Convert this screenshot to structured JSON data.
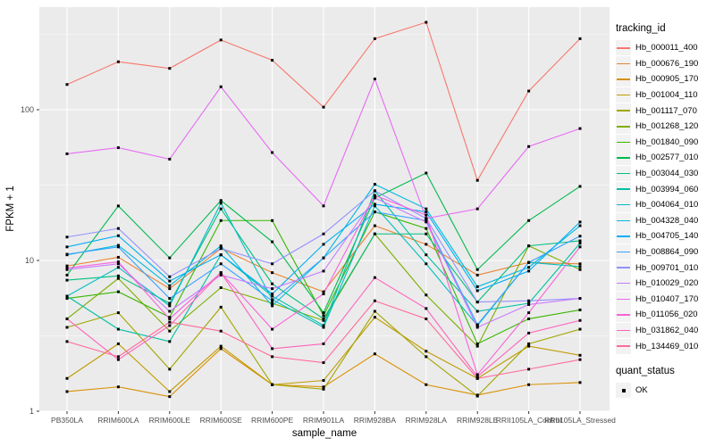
{
  "legend": {
    "tracking_title": "tracking_id",
    "quant_title": "quant_status",
    "quant_ok_label": "OK"
  },
  "chart_data": {
    "type": "line",
    "title": "",
    "xlabel": "sample_name",
    "ylabel": "FPKM + 1",
    "y_scale": "log10",
    "y_tick_values": [
      1,
      10,
      100
    ],
    "y_tick_labels": [
      "1",
      "10",
      "100"
    ],
    "ylim": [
      1,
      480
    ],
    "grid": true,
    "legend_position": "right",
    "panel_bg": "#EBEBEB",
    "grid_color": "#FFFFFF",
    "tick_color": "#333333",
    "tick_label_color": "#4D4D4D",
    "point_color": "#000000",
    "point_shape": "square",
    "categories": [
      "PB350LA",
      "RRIM600LA",
      "RRIM600LE",
      "RRIM600SE",
      "RRIM600PE",
      "RRIM901LA",
      "RRIM928BA",
      "RRIM928LA",
      "RRIM928LE",
      "RRII105LA_Control",
      "RRII105LA_Stressed"
    ],
    "series": [
      {
        "name": "Hb_000011_400",
        "color": "#F8766D",
        "values": [
          147,
          208,
          188,
          290,
          213,
          104,
          296,
          380,
          34,
          133,
          296
        ]
      },
      {
        "name": "Hb_000676_190",
        "color": "#EA8331",
        "values": [
          9.2,
          10.5,
          6.5,
          12,
          8.3,
          6.2,
          17,
          12.8,
          8,
          9.7,
          9.5
        ]
      },
      {
        "name": "Hb_000905_170",
        "color": "#D89000",
        "values": [
          1.35,
          1.45,
          1.25,
          2.6,
          1.5,
          1.45,
          2.4,
          1.5,
          1.28,
          1.5,
          1.55
        ]
      },
      {
        "name": "Hb_001004_110",
        "color": "#C09B00",
        "values": [
          1.65,
          2.8,
          1.35,
          2.7,
          1.5,
          1.6,
          4.2,
          2.5,
          1.65,
          2.7,
          2.35
        ]
      },
      {
        "name": "Hb_001117_070",
        "color": "#A3A500",
        "values": [
          3.6,
          4.5,
          1.9,
          4.9,
          1.5,
          1.4,
          4.6,
          2.3,
          1.26,
          2.8,
          3.5
        ]
      },
      {
        "name": "Hb_001268_120",
        "color": "#7CAE00",
        "values": [
          4.1,
          7.6,
          3.4,
          6.6,
          5.2,
          4,
          15,
          5.9,
          2.7,
          12.5,
          8.7
        ]
      },
      {
        "name": "Hb_001840_090",
        "color": "#39B600",
        "values": [
          5.6,
          6.2,
          4.2,
          18.4,
          18.4,
          4.3,
          21,
          16.3,
          2.8,
          4.1,
          4.7
        ]
      },
      {
        "name": "Hb_002577_010",
        "color": "#00BB4E",
        "values": [
          8,
          23,
          10.4,
          25,
          13.3,
          4.5,
          26,
          38,
          8.7,
          18.4,
          31
        ]
      },
      {
        "name": "Hb_003044_030",
        "color": "#00BF7D",
        "values": [
          7.4,
          7.9,
          5.2,
          22,
          7,
          4.1,
          15,
          15,
          5.3,
          12.5,
          13.5
        ]
      },
      {
        "name": "Hb_003994_060",
        "color": "#00C1A3",
        "values": [
          5.8,
          3.5,
          2.9,
          10.9,
          5.8,
          3.7,
          29,
          10.9,
          4.6,
          5.2,
          13
        ]
      },
      {
        "name": "Hb_004064_010",
        "color": "#00BFC4",
        "values": [
          5.8,
          9,
          5,
          24,
          5.5,
          3.6,
          23,
          9.5,
          3.7,
          9.7,
          9.1
        ]
      },
      {
        "name": "Hb_004328_040",
        "color": "#00BAE0",
        "values": [
          10.9,
          12.6,
          6.8,
          12.5,
          5,
          10.4,
          32,
          22,
          6.7,
          9,
          17
        ]
      },
      {
        "name": "Hb_004705_140",
        "color": "#00B0F6",
        "values": [
          12.3,
          14.6,
          7.3,
          10.9,
          6,
          12.8,
          23.6,
          21,
          6.3,
          8.5,
          18
        ]
      },
      {
        "name": "Hb_008864_090",
        "color": "#35A2FF",
        "values": [
          11,
          12.3,
          5.6,
          9.5,
          5.4,
          10.4,
          21,
          18.4,
          3.75,
          9.7,
          14.5
        ]
      },
      {
        "name": "Hb_009701_010",
        "color": "#9590FF",
        "values": [
          14.3,
          16.3,
          7.8,
          12,
          9.5,
          15,
          29,
          19,
          5.3,
          5.4,
          5.6
        ]
      },
      {
        "name": "Hb_010029_020",
        "color": "#C77CFF",
        "values": [
          8.7,
          9.5,
          4.6,
          8,
          6.5,
          8.5,
          26,
          18,
          3.6,
          5.1,
          5.6
        ]
      },
      {
        "name": "Hb_010407_170",
        "color": "#E76BF3",
        "values": [
          51,
          56,
          47,
          142,
          52,
          23,
          160,
          19,
          22,
          57,
          75
        ]
      },
      {
        "name": "Hb_011056_020",
        "color": "#FA62DB",
        "values": [
          8.9,
          9.8,
          4.1,
          8.3,
          3.5,
          6,
          27,
          20,
          1.75,
          4.5,
          12.3
        ]
      },
      {
        "name": "Hb_031862_040",
        "color": "#FF62BC",
        "values": [
          4.1,
          2.2,
          3.7,
          8.3,
          2.6,
          2.8,
          7.7,
          4.8,
          1.7,
          3.3,
          4
        ]
      },
      {
        "name": "Hb_134469_010",
        "color": "#FF6A98",
        "values": [
          2.9,
          2.3,
          3.9,
          3.4,
          2.3,
          2.1,
          5.4,
          4.1,
          1.65,
          1.9,
          2.2
        ]
      }
    ]
  }
}
